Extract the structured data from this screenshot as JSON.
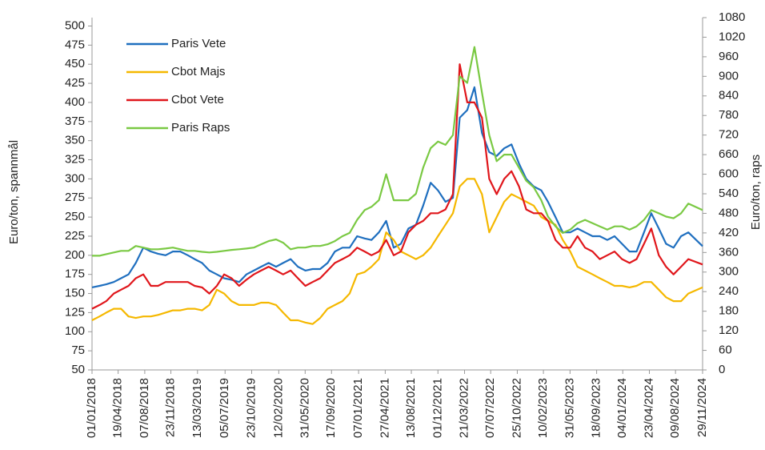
{
  "chart_data": {
    "type": "line",
    "y_label": "Euro/ton, spannmål",
    "y2_label": "Euro/ton, raps",
    "x": [
      "01/01/2018",
      "01/02/2018",
      "01/03/2018",
      "01/04/2018",
      "01/05/2018",
      "01/06/2018",
      "01/07/2018",
      "01/08/2018",
      "01/09/2018",
      "01/10/2018",
      "01/11/2018",
      "01/12/2018",
      "01/01/2019",
      "01/02/2019",
      "01/03/2019",
      "01/04/2019",
      "01/05/2019",
      "01/06/2019",
      "01/07/2019",
      "01/08/2019",
      "01/09/2019",
      "01/10/2019",
      "01/11/2019",
      "01/12/2019",
      "01/01/2020",
      "01/02/2020",
      "01/03/2020",
      "01/04/2020",
      "01/05/2020",
      "01/06/2020",
      "01/07/2020",
      "01/08/2020",
      "01/09/2020",
      "01/10/2020",
      "01/11/2020",
      "01/12/2020",
      "01/01/2021",
      "01/02/2021",
      "01/03/2021",
      "01/04/2021",
      "01/05/2021",
      "01/06/2021",
      "01/07/2021",
      "01/08/2021",
      "01/09/2021",
      "01/10/2021",
      "01/11/2021",
      "01/12/2021",
      "01/01/2022",
      "01/02/2022",
      "01/03/2022",
      "01/04/2022",
      "01/05/2022",
      "01/06/2022",
      "01/07/2022",
      "01/08/2022",
      "01/09/2022",
      "01/10/2022",
      "01/11/2022",
      "01/12/2022",
      "01/01/2023",
      "01/02/2023",
      "01/03/2023",
      "01/04/2023",
      "01/05/2023",
      "01/06/2023",
      "01/07/2023",
      "01/08/2023",
      "01/09/2023",
      "01/10/2023",
      "01/11/2023",
      "01/12/2023",
      "01/01/2024",
      "01/02/2024",
      "01/03/2024",
      "01/04/2024",
      "01/05/2024",
      "01/06/2024",
      "01/07/2024",
      "01/08/2024",
      "01/09/2024",
      "01/10/2024",
      "29/11/2024"
    ],
    "series": [
      {
        "name": "Paris Vete",
        "color": "#1f6fbf",
        "values": [
          158,
          160,
          162,
          165,
          170,
          175,
          190,
          210,
          205,
          202,
          200,
          205,
          205,
          200,
          195,
          190,
          180,
          175,
          170,
          168,
          165,
          175,
          180,
          185,
          190,
          185,
          190,
          195,
          185,
          180,
          182,
          182,
          190,
          205,
          210,
          210,
          225,
          222,
          220,
          230,
          245,
          210,
          215,
          235,
          240,
          265,
          295,
          285,
          270,
          275,
          380,
          390,
          420,
          360,
          335,
          330,
          340,
          345,
          320,
          300,
          290,
          285,
          270,
          250,
          230,
          230,
          235,
          230,
          225,
          225,
          220,
          225,
          215,
          205,
          205,
          230,
          255,
          235,
          215,
          210,
          225,
          230,
          212
        ]
      },
      {
        "name": "Cbot Majs",
        "color": "#f5b800",
        "values": [
          115,
          120,
          125,
          130,
          130,
          120,
          118,
          120,
          120,
          122,
          125,
          128,
          128,
          130,
          130,
          128,
          135,
          155,
          150,
          140,
          135,
          135,
          135,
          138,
          138,
          135,
          125,
          115,
          115,
          112,
          110,
          118,
          130,
          135,
          140,
          150,
          175,
          178,
          185,
          195,
          230,
          220,
          205,
          200,
          195,
          200,
          210,
          225,
          240,
          255,
          290,
          300,
          300,
          280,
          230,
          250,
          270,
          280,
          275,
          270,
          265,
          250,
          245,
          240,
          220,
          205,
          185,
          180,
          175,
          170,
          165,
          160,
          160,
          158,
          160,
          165,
          165,
          155,
          145,
          140,
          140,
          150,
          158
        ]
      },
      {
        "name": "Cbot Vete",
        "color": "#e0161b",
        "values": [
          130,
          135,
          140,
          150,
          155,
          160,
          170,
          175,
          160,
          160,
          165,
          165,
          165,
          165,
          160,
          158,
          150,
          160,
          175,
          170,
          160,
          168,
          175,
          180,
          185,
          180,
          175,
          180,
          170,
          160,
          165,
          170,
          180,
          190,
          195,
          200,
          210,
          205,
          200,
          205,
          220,
          200,
          205,
          230,
          240,
          245,
          255,
          255,
          260,
          280,
          450,
          400,
          400,
          380,
          300,
          280,
          300,
          310,
          290,
          260,
          255,
          255,
          245,
          220,
          210,
          210,
          225,
          210,
          205,
          195,
          200,
          205,
          195,
          190,
          195,
          215,
          235,
          200,
          185,
          175,
          185,
          195,
          188
        ]
      },
      {
        "name": "Paris Raps",
        "color": "#7ac943",
        "axis": "y2",
        "values": [
          350,
          350,
          355,
          360,
          365,
          365,
          380,
          375,
          370,
          370,
          372,
          375,
          370,
          365,
          365,
          362,
          360,
          362,
          365,
          368,
          370,
          372,
          375,
          385,
          395,
          400,
          390,
          370,
          375,
          375,
          380,
          380,
          385,
          395,
          410,
          420,
          460,
          490,
          500,
          520,
          600,
          520,
          520,
          520,
          540,
          620,
          680,
          700,
          690,
          720,
          900,
          880,
          990,
          850,
          720,
          640,
          660,
          660,
          620,
          580,
          560,
          520,
          470,
          440,
          420,
          430,
          450,
          460,
          450,
          440,
          430,
          440,
          440,
          430,
          440,
          460,
          490,
          480,
          470,
          465,
          480,
          510,
          490
        ]
      }
    ],
    "xlim": [
      "01/01/2018",
      "29/11/2024"
    ],
    "xticks": [
      "01/01/2018",
      "19/04/2018",
      "07/08/2018",
      "23/11/2018",
      "13/03/2019",
      "05/07/2019",
      "23/10/2019",
      "12/02/2020",
      "31/05/2020",
      "17/09/2020",
      "07/01/2021",
      "27/04/2021",
      "13/08/2021",
      "01/12/2021",
      "21/03/2022",
      "07/07/2022",
      "25/10/2022",
      "10/02/2023",
      "31/05/2023",
      "18/09/2023",
      "04/01/2024",
      "23/04/2024",
      "09/08/2024",
      "29/11/2024"
    ],
    "ylim": [
      50,
      511
    ],
    "yticks": [
      50,
      75,
      100,
      125,
      150,
      175,
      200,
      225,
      250,
      275,
      300,
      325,
      350,
      375,
      400,
      425,
      450,
      475,
      500
    ],
    "y2lim": [
      0,
      1080
    ],
    "y2ticks": [
      0,
      60,
      120,
      180,
      240,
      300,
      360,
      420,
      480,
      540,
      600,
      660,
      720,
      780,
      840,
      900,
      960,
      1020,
      1080
    ],
    "grid": false
  }
}
